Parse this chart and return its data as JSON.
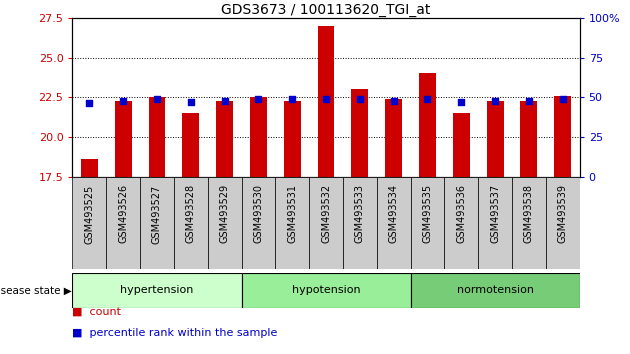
{
  "title": "GDS3673 / 100113620_TGI_at",
  "samples": [
    "GSM493525",
    "GSM493526",
    "GSM493527",
    "GSM493528",
    "GSM493529",
    "GSM493530",
    "GSM493531",
    "GSM493532",
    "GSM493533",
    "GSM493534",
    "GSM493535",
    "GSM493536",
    "GSM493537",
    "GSM493538",
    "GSM493539"
  ],
  "red_values": [
    18.6,
    22.3,
    22.5,
    21.5,
    22.3,
    22.5,
    22.3,
    27.0,
    23.0,
    22.4,
    24.0,
    21.5,
    22.3,
    22.3,
    22.6
  ],
  "blue_values": [
    22.15,
    22.3,
    22.4,
    22.2,
    22.3,
    22.4,
    22.4,
    22.4,
    22.4,
    22.3,
    22.4,
    22.2,
    22.3,
    22.3,
    22.4
  ],
  "ymin": 17.5,
  "ymax": 27.5,
  "yticks": [
    17.5,
    20.0,
    22.5,
    25.0,
    27.5
  ],
  "right_yticks": [
    0,
    25,
    50,
    75,
    100
  ],
  "groups": [
    {
      "label": "hypertension",
      "start": 0,
      "end": 4
    },
    {
      "label": "hypotension",
      "start": 5,
      "end": 9
    },
    {
      "label": "normotension",
      "start": 10,
      "end": 14
    }
  ],
  "group_colors": [
    "#ccffcc",
    "#99ee99",
    "#77cc77"
  ],
  "bar_color": "#cc0000",
  "dot_color": "#0000cc",
  "bar_bottom": 17.5,
  "tick_color_left": "#cc0000",
  "tick_color_right": "#0000cc",
  "legend_count_label": "count",
  "legend_pct_label": "percentile rank within the sample"
}
